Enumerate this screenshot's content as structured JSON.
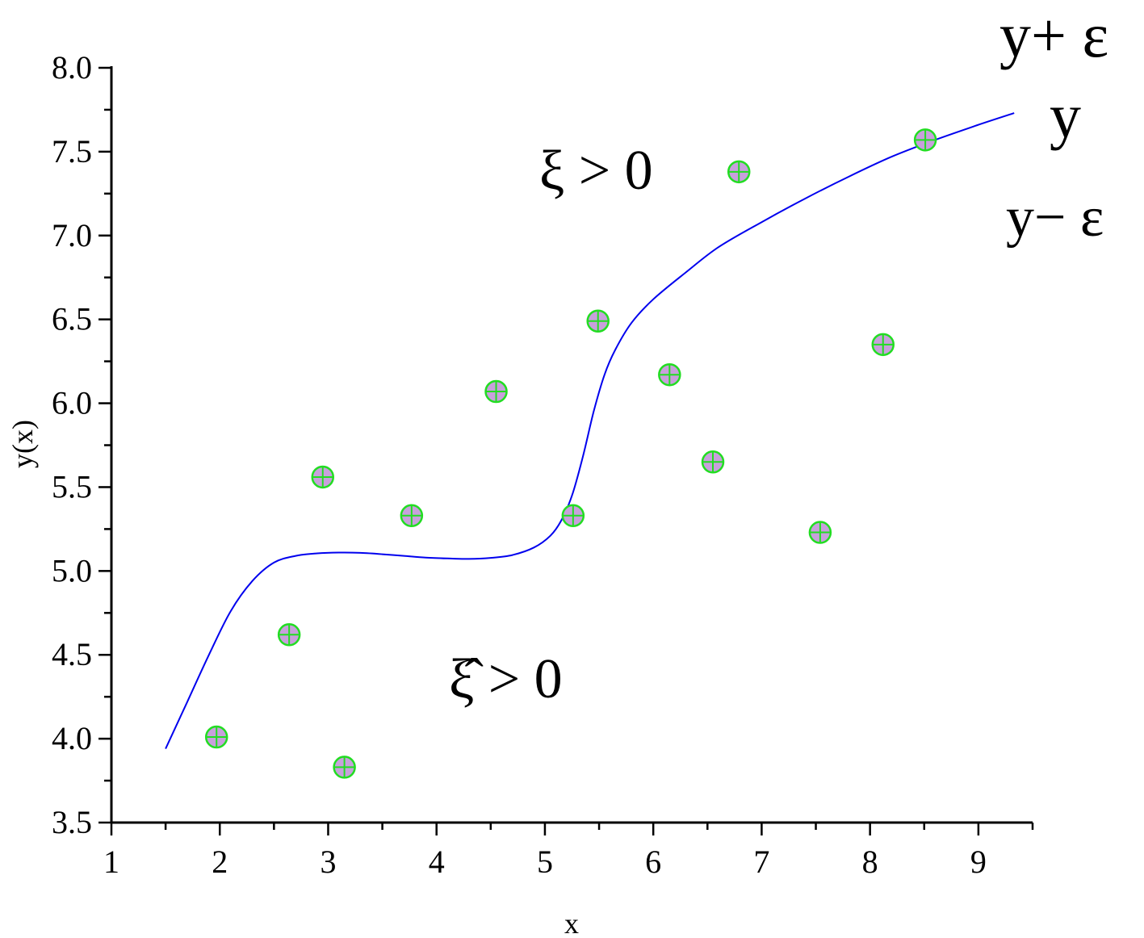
{
  "chart_data": {
    "type": "scatter",
    "xlabel": "x",
    "ylabel": "y(x)",
    "xlim": [
      1,
      9.5
    ],
    "ylim": [
      3.5,
      8.0
    ],
    "x_ticks": [
      "1",
      "2",
      "3",
      "4",
      "5",
      "6",
      "7",
      "8",
      "9"
    ],
    "y_ticks": [
      "3.5",
      "4.0",
      "4.5",
      "5.0",
      "5.5",
      "6.0",
      "6.5",
      "7.0",
      "7.5",
      "8.0"
    ],
    "grid": false,
    "series": [
      {
        "kind": "line",
        "color": "#0000ee",
        "x": [
          1.5,
          1.7,
          1.9,
          2.1,
          2.3,
          2.5,
          2.7,
          2.9,
          3.1,
          3.3,
          3.5,
          3.7,
          3.9,
          4.1,
          4.3,
          4.5,
          4.7,
          4.9,
          5.05,
          5.15,
          5.25,
          5.35,
          5.45,
          5.55,
          5.65,
          5.8,
          6.0,
          6.3,
          6.6,
          7.0,
          7.4,
          7.8,
          8.2,
          8.6,
          9.0,
          9.33
        ],
        "y": [
          3.94,
          4.22,
          4.5,
          4.76,
          4.94,
          5.05,
          5.09,
          5.105,
          5.11,
          5.108,
          5.1,
          5.09,
          5.08,
          5.075,
          5.072,
          5.078,
          5.095,
          5.14,
          5.21,
          5.3,
          5.45,
          5.68,
          5.95,
          6.17,
          6.32,
          6.48,
          6.62,
          6.78,
          6.93,
          7.08,
          7.22,
          7.35,
          7.47,
          7.57,
          7.66,
          7.73
        ]
      },
      {
        "kind": "points",
        "marker_fill": "#c8a0dc",
        "marker_stroke": "#22dd22",
        "x": [
          1.97,
          2.64,
          2.95,
          3.15,
          3.77,
          4.55,
          5.26,
          5.49,
          6.15,
          6.55,
          6.79,
          7.54,
          8.12,
          8.51
        ],
        "y": [
          4.01,
          4.62,
          5.56,
          3.83,
          5.33,
          6.07,
          5.33,
          6.49,
          6.17,
          5.65,
          7.38,
          5.23,
          6.35,
          7.57
        ]
      }
    ],
    "annotations": {
      "xi_pos": "ξ > 0",
      "xi_hat_pos": "ξ̂ > 0",
      "y_plus": "y+ ε",
      "y_mid": "y",
      "y_minus": "y− ε"
    }
  }
}
